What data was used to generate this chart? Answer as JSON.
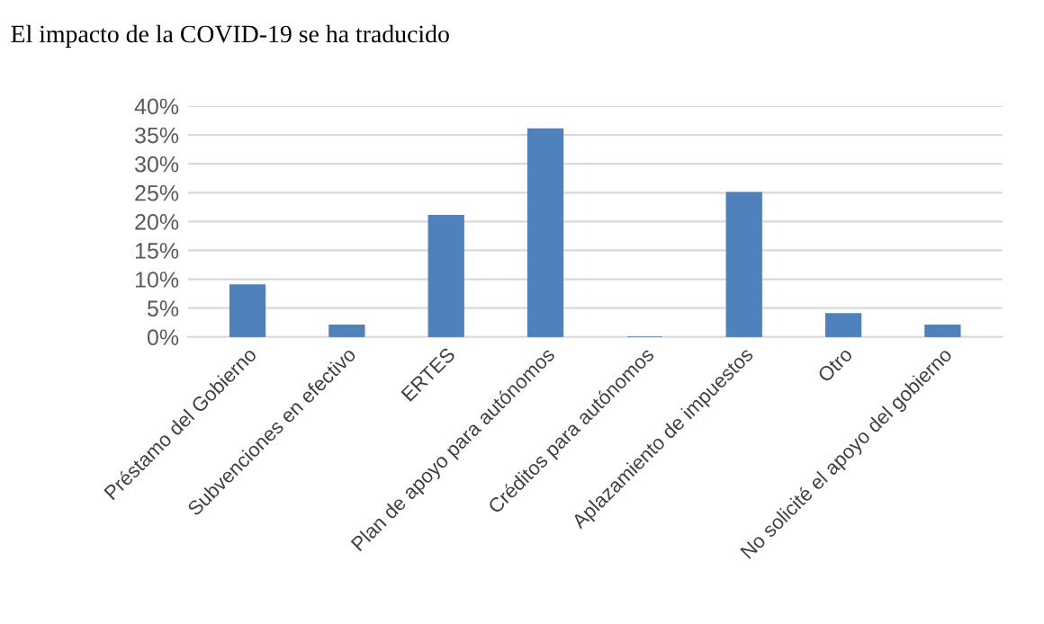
{
  "chart_data": {
    "type": "bar",
    "title": "El impacto de la COVID-19 se ha traducido",
    "categories": [
      "Préstamo del Gobierno",
      "Subvenciones en efectivo",
      "ERTES",
      "Plan de apoyo para autónomos",
      "Créditos para autónomos",
      "Aplazamiento de impuestos",
      "Otro",
      "No solicité el apoyo del gobierno"
    ],
    "values": [
      9,
      2,
      21,
      36,
      0,
      25,
      4,
      2
    ],
    "color": "#4f81bd",
    "ylim": [
      0,
      40
    ],
    "yticks": [
      {
        "value": 0,
        "label": "0%"
      },
      {
        "value": 5,
        "label": "5%"
      },
      {
        "value": 10,
        "label": "10%"
      },
      {
        "value": 15,
        "label": "15%"
      },
      {
        "value": 20,
        "label": "20%"
      },
      {
        "value": 25,
        "label": "25%"
      },
      {
        "value": 30,
        "label": "30%"
      },
      {
        "value": 35,
        "label": "35%"
      },
      {
        "value": 40,
        "label": "40%"
      }
    ],
    "grid": "y"
  }
}
